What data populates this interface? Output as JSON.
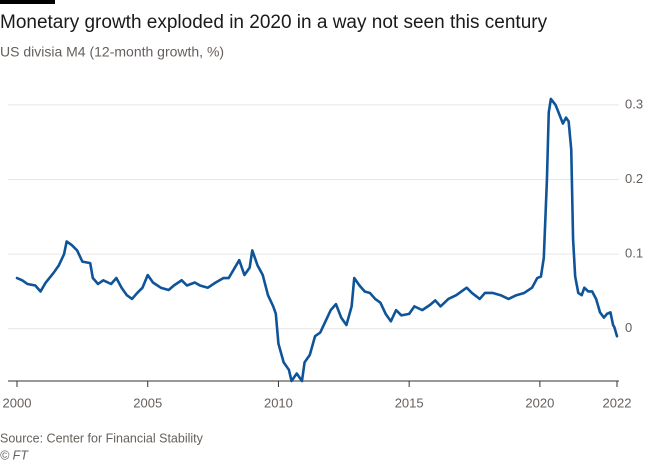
{
  "chart_data": {
    "type": "line",
    "title": "Monetary growth exploded in 2020 in a way not seen this century",
    "subtitle": "US divisia M4 (12-month growth, %)",
    "source": "Source: Center for Financial Stability",
    "credit": "© FT",
    "x": [
      2000.0,
      2000.2,
      2000.4,
      2000.7,
      2000.9,
      2001.1,
      2001.4,
      2001.6,
      2001.8,
      2001.9,
      2002.1,
      2002.3,
      2002.5,
      2002.8,
      2002.9,
      2003.1,
      2003.3,
      2003.6,
      2003.8,
      2004.0,
      2004.2,
      2004.4,
      2004.6,
      2004.8,
      2005.0,
      2005.2,
      2005.5,
      2005.8,
      2006.0,
      2006.3,
      2006.5,
      2006.8,
      2007.0,
      2007.3,
      2007.6,
      2007.9,
      2008.1,
      2008.3,
      2008.5,
      2008.7,
      2008.9,
      2009.0,
      2009.2,
      2009.4,
      2009.6,
      2009.8,
      2009.9,
      2010.0,
      2010.2,
      2010.4,
      2010.5,
      2010.7,
      2010.9,
      2011.0,
      2011.2,
      2011.4,
      2011.6,
      2011.8,
      2012.0,
      2012.2,
      2012.4,
      2012.6,
      2012.8,
      2012.9,
      2013.1,
      2013.3,
      2013.5,
      2013.7,
      2013.9,
      2014.1,
      2014.3,
      2014.5,
      2014.7,
      2015.0,
      2015.2,
      2015.5,
      2015.8,
      2016.0,
      2016.2,
      2016.5,
      2016.8,
      2017.0,
      2017.2,
      2017.4,
      2017.7,
      2017.9,
      2018.2,
      2018.5,
      2018.8,
      2019.1,
      2019.4,
      2019.7,
      2019.9,
      2020.04,
      2020.15,
      2020.27,
      2020.34,
      2020.42,
      2020.6,
      2020.77,
      2020.88,
      2021.0,
      2021.1,
      2021.2,
      2021.27,
      2021.35,
      2021.47,
      2021.6,
      2021.7,
      2021.85,
      2022.0,
      2022.15,
      2022.3,
      2022.45,
      2022.57,
      2022.7,
      2022.8,
      2022.85,
      2022.95
    ],
    "series": [
      {
        "color": "#0f5499",
        "values": [
          0.068,
          0.065,
          0.06,
          0.058,
          0.05,
          0.062,
          0.075,
          0.085,
          0.1,
          0.117,
          0.112,
          0.105,
          0.09,
          0.088,
          0.068,
          0.06,
          0.065,
          0.06,
          0.068,
          0.055,
          0.045,
          0.04,
          0.048,
          0.055,
          0.072,
          0.062,
          0.055,
          0.052,
          0.058,
          0.065,
          0.058,
          0.062,
          0.058,
          0.055,
          0.062,
          0.068,
          0.068,
          0.08,
          0.092,
          0.072,
          0.082,
          0.105,
          0.085,
          0.072,
          0.045,
          0.03,
          0.02,
          -0.02,
          -0.045,
          -0.055,
          -0.07,
          -0.06,
          -0.07,
          -0.045,
          -0.035,
          -0.01,
          -0.005,
          0.01,
          0.025,
          0.033,
          0.015,
          0.005,
          0.03,
          0.068,
          0.058,
          0.05,
          0.048,
          0.04,
          0.035,
          0.02,
          0.01,
          0.025,
          0.018,
          0.02,
          0.03,
          0.025,
          0.032,
          0.038,
          0.03,
          0.04,
          0.045,
          0.05,
          0.055,
          0.048,
          0.04,
          0.048,
          0.048,
          0.045,
          0.04,
          0.045,
          0.048,
          0.055,
          0.068,
          0.07,
          0.095,
          0.2,
          0.29,
          0.308,
          0.3,
          0.285,
          0.275,
          0.283,
          0.278,
          0.24,
          0.12,
          0.07,
          0.048,
          0.045,
          0.055,
          0.05,
          0.05,
          0.04,
          0.022,
          0.015,
          0.02,
          0.022,
          0.005,
          0.002,
          -0.01
        ]
      }
    ],
    "xlim": [
      2000,
      2022.95
    ],
    "xticks": [
      2000,
      2005,
      2010,
      2015,
      2020,
      {
        "value": 2022.95,
        "label": "2022"
      }
    ],
    "ylim": [
      -0.07,
      0.32
    ],
    "yticks": [
      0,
      0.1,
      0.2,
      0.3
    ],
    "grid": true
  }
}
